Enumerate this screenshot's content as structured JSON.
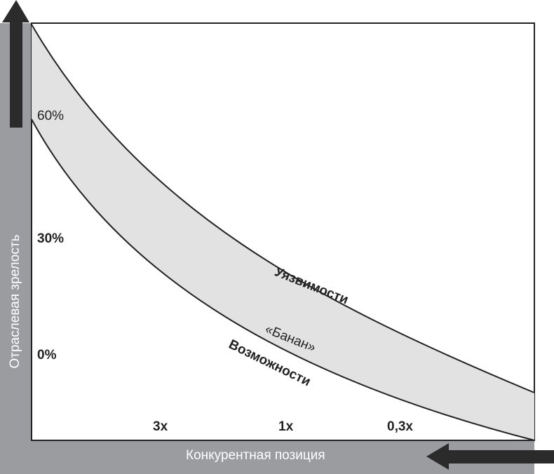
{
  "axes": {
    "y_label": "Отраслевая зрелость",
    "x_label": "Конкурентная позиция",
    "y_ticks": [
      "60%",
      "30%",
      "0%"
    ],
    "x_ticks": [
      "3x",
      "1x",
      "0,3x"
    ]
  },
  "curves": {
    "upper_label": "Уязвимости",
    "lower_label": "Возможности",
    "band_label": "«Банан»"
  },
  "colors": {
    "band": "#9a9c9f",
    "arrow": "#2b2b2b",
    "fill": "#e2e2e2"
  }
}
